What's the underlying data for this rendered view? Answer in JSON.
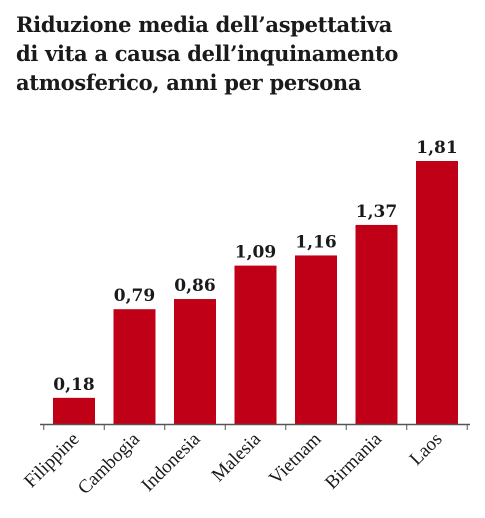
{
  "title_lines": [
    "Riduzione media dell’aspettativa",
    "di vita a causa dell’inquinamento",
    "atmosferico, anni per persona"
  ],
  "colors": {
    "bar": "#c00016",
    "axis": "#555555",
    "text": "#1a1a1a"
  },
  "chart_data": {
    "type": "bar",
    "title": "Riduzione media dell’aspettativa di vita a causa dell’inquinamento atmosferico, anni per persona",
    "categories": [
      "Filippine",
      "Cambogia",
      "Indonesia",
      "Malesia",
      "Vietnam",
      "Birmania",
      "Laos"
    ],
    "values": [
      0.18,
      0.79,
      0.86,
      1.09,
      1.16,
      1.37,
      1.81
    ],
    "labels": [
      "0,18",
      "0,79",
      "0,86",
      "1,09",
      "1,16",
      "1,37",
      "1,81"
    ],
    "ylim": [
      0,
      1.81
    ],
    "grid": false,
    "xlabel": "",
    "ylabel": ""
  }
}
